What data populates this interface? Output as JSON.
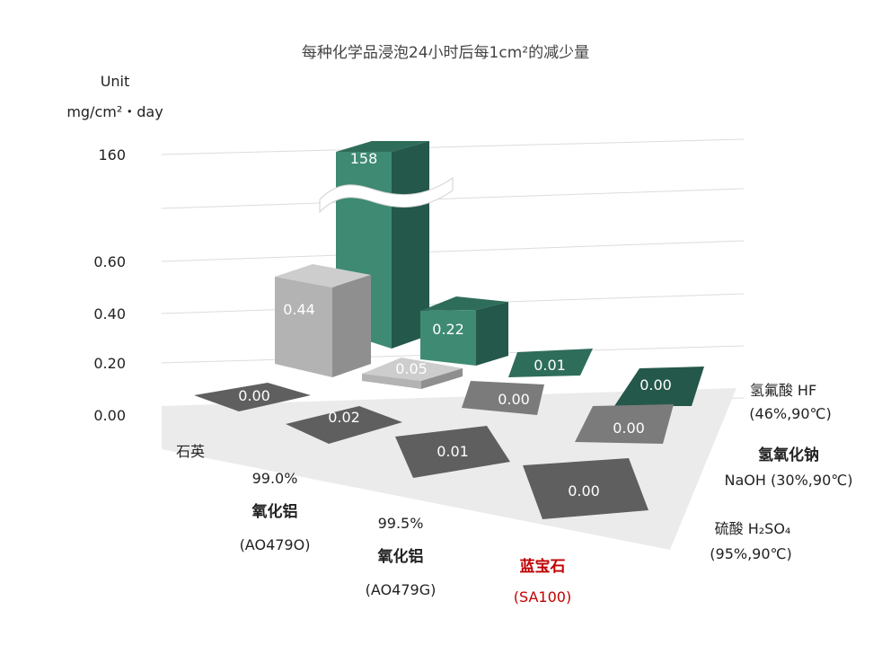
{
  "chart_data": {
    "type": "bar",
    "title": "每种化学品浸泡24小时后每1cm²的减少量",
    "unit_line1": "Unit",
    "unit_line2": "mg/cm²・day",
    "y_ticks": [
      "160",
      "0.60",
      "0.40",
      "0.20",
      "0.00"
    ],
    "axis_break": true,
    "materials": [
      {
        "name": "石英",
        "lines": [
          "石英"
        ]
      },
      {
        "name": "99.0% 氧化铝 (AO479O)",
        "lines": [
          "99.0%",
          "氧化铝",
          "(AO479O)"
        ]
      },
      {
        "name": "99.5% 氧化铝 (AO479G)",
        "lines": [
          "99.5%",
          "氧化铝",
          "(AO479G)"
        ]
      },
      {
        "name": "蓝宝石 (SA100)",
        "lines": [
          "蓝宝石",
          "(SA100)"
        ],
        "highlight_color": "#c00000"
      }
    ],
    "chemicals": [
      {
        "name": "氢氟酸 HF (46%,90℃)",
        "lines": [
          "氢氟酸 HF",
          "(46%,90℃)"
        ]
      },
      {
        "name": "氢氧化钠 NaOH (30%,90℃)",
        "lines": [
          "氢氧化钠",
          "NaOH (30%,90℃)"
        ]
      },
      {
        "name": "硫酸 H2SO4 (95%,90℃)",
        "lines": [
          "硫酸 H₂SO₄",
          "(95%,90℃)"
        ]
      }
    ],
    "values": [
      {
        "material": "石英",
        "chemical": "氢氟酸 HF",
        "value": 0.44,
        "label": "0.44"
      },
      {
        "material": "99.0% 氧化铝",
        "chemical": "氢氟酸 HF",
        "value": 158,
        "label": "158"
      },
      {
        "material": "99.5% 氧化铝",
        "chemical": "氢氟酸 HF",
        "value": 0.22,
        "label": "0.22"
      },
      {
        "material": "蓝宝石",
        "chemical": "氢氟酸 HF",
        "value": 0.01,
        "label": "0.01"
      },
      {
        "material": "石英",
        "chemical": "氢氧化钠",
        "value": 0.05,
        "label": "0.05"
      },
      {
        "material": "99.0% 氧化铝",
        "chemical": "氢氧化钠",
        "value": 0.0,
        "label": "0.00"
      },
      {
        "material": "99.5% 氧化铝",
        "chemical": "氢氧化钠",
        "value": 0.0,
        "label": "0.00"
      },
      {
        "material": "蓝宝石",
        "chemical": "氢氧化钠",
        "value": 0.0,
        "label": "0.00"
      },
      {
        "material": "石英",
        "chemical": "硫酸 H2SO4",
        "value": 0.0,
        "label": "0.00"
      },
      {
        "material": "99.0% 氧化铝",
        "chemical": "硫酸 H2SO4",
        "value": 0.02,
        "label": "0.02"
      },
      {
        "material": "99.5% 氧化铝",
        "chemical": "硫酸 H2SO4",
        "value": 0.01,
        "label": "0.01"
      },
      {
        "material": "蓝宝石",
        "chemical": "硫酸 H2SO4",
        "value": 0.0,
        "label": "0.00"
      }
    ],
    "colors": {
      "green_front": "#3e8a72",
      "green_side": "#24584a",
      "green_top": "#2f6d5b",
      "lightgray_front": "#b3b3b3",
      "lightgray_side": "#8f8f8f",
      "lightgray_top": "#cdcdcd",
      "gray_top": "#7b7b7b",
      "dark_top": "#5f5f5f",
      "floor": "#ebebeb"
    }
  }
}
